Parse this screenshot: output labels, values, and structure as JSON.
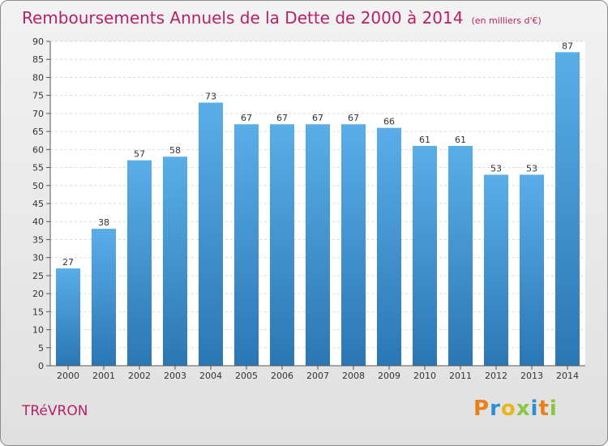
{
  "chart_data": {
    "type": "bar",
    "title": "Remboursements Annuels de la Dette de 2000 à 2014",
    "unit_note": "(en milliers d'€)",
    "categories": [
      "2000",
      "2001",
      "2002",
      "2003",
      "2004",
      "2005",
      "2006",
      "2007",
      "2008",
      "2009",
      "2010",
      "2011",
      "2012",
      "2013",
      "2014"
    ],
    "values": [
      27,
      38,
      57,
      58,
      73,
      67,
      67,
      67,
      67,
      66,
      61,
      61,
      53,
      53,
      87
    ],
    "ylim": [
      0,
      90
    ],
    "yticks": [
      0,
      5,
      10,
      15,
      20,
      25,
      30,
      35,
      40,
      45,
      50,
      55,
      60,
      65,
      70,
      75,
      80,
      85,
      90
    ],
    "grid": true,
    "xlabel": "",
    "ylabel": ""
  },
  "commune": "TRéVRON",
  "logo": {
    "letters": [
      "P",
      "r",
      "o",
      "x",
      "i",
      "t",
      "i"
    ],
    "colors": [
      "#e8801a",
      "#2a8fd6",
      "#e8b51a",
      "#8cc63f",
      "#2a8fd6",
      "#e8801a",
      "#8cc63f"
    ]
  },
  "colors": {
    "title": "#b52267",
    "bar_top": "#5aaee8",
    "bar_bottom": "#2a77b4"
  }
}
